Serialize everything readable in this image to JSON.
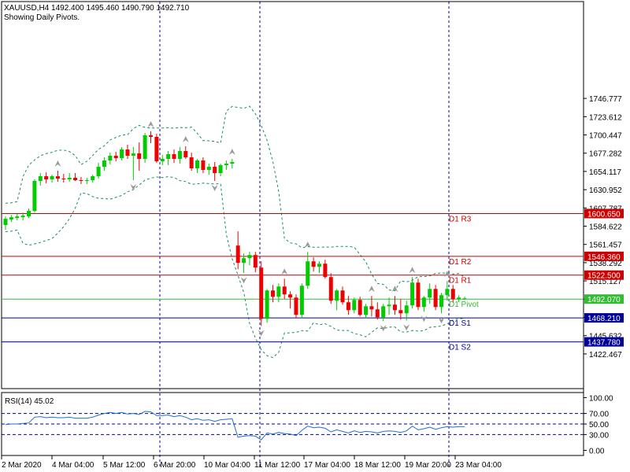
{
  "header": {
    "symbol_line": "XAUUSD,H4  1492.400 1495.460 1490.790 1492.710",
    "subtitle": "Showing Daily Pivots."
  },
  "colors": {
    "bull": "#00cc00",
    "bear": "#ee0000",
    "band": "#1a8a5a",
    "resistance": "#cc0000",
    "pivot": "#33bb33",
    "support": "#000099",
    "session": "#000099",
    "rsi": "#1e6fd0",
    "fractal": "#999999"
  },
  "chart_data": [
    {
      "type": "candlestick",
      "symbol": "XAUUSD",
      "timeframe": "H4",
      "ylim": [
        1400,
        1766
      ],
      "y_ticks": [
        "1746.777",
        "1723.612",
        "1700.447",
        "1677.282",
        "1654.117",
        "1630.952",
        "1607.787",
        "1584.622",
        "1561.457",
        "1538.292",
        "1515.127",
        "1491.962",
        "1468.797",
        "1445.632",
        "1422.467"
      ],
      "x_ticks": [
        "2 Mar 2020",
        "4 Mar 04:00",
        "5 Mar 12:00",
        "6 Mar 20:00",
        "10 Mar 04:00",
        "11 Mar 12:00",
        "17 Mar 04:00",
        "18 Mar 12:00",
        "19 Mar 20:00",
        "23 Mar 04:00"
      ],
      "candles": [
        [
          1586,
          1597,
          1580,
          1594
        ],
        [
          1593,
          1599,
          1590,
          1596
        ],
        [
          1595,
          1600,
          1592,
          1597
        ],
        [
          1596,
          1602,
          1592,
          1598
        ],
        [
          1597,
          1607,
          1595,
          1604
        ],
        [
          1604,
          1644,
          1602,
          1642
        ],
        [
          1642,
          1652,
          1636,
          1648
        ],
        [
          1648,
          1653,
          1639,
          1644
        ],
        [
          1644,
          1650,
          1640,
          1648
        ],
        [
          1648,
          1655,
          1641,
          1645
        ],
        [
          1645,
          1651,
          1640,
          1644
        ],
        [
          1644,
          1652,
          1641,
          1646
        ],
        [
          1646,
          1652,
          1642,
          1643
        ],
        [
          1643,
          1647,
          1638,
          1642
        ],
        [
          1642,
          1646,
          1638,
          1643
        ],
        [
          1643,
          1650,
          1640,
          1648
        ],
        [
          1648,
          1665,
          1645,
          1660
        ],
        [
          1660,
          1672,
          1655,
          1668
        ],
        [
          1668,
          1678,
          1663,
          1674
        ],
        [
          1674,
          1679,
          1667,
          1671
        ],
        [
          1671,
          1685,
          1668,
          1682
        ],
        [
          1682,
          1688,
          1670,
          1674
        ],
        [
          1674,
          1685,
          1643,
          1677
        ],
        [
          1677,
          1691,
          1655,
          1670
        ],
        [
          1670,
          1703,
          1665,
          1700
        ],
        [
          1700,
          1705,
          1690,
          1698
        ],
        [
          1698,
          1702,
          1665,
          1667
        ],
        [
          1667,
          1675,
          1662,
          1670
        ],
        [
          1670,
          1680,
          1662,
          1676
        ],
        [
          1676,
          1682,
          1665,
          1670
        ],
        [
          1670,
          1685,
          1664,
          1680
        ],
        [
          1680,
          1686,
          1670,
          1672
        ],
        [
          1672,
          1678,
          1655,
          1658
        ],
        [
          1658,
          1670,
          1652,
          1668
        ],
        [
          1668,
          1672,
          1652,
          1656
        ],
        [
          1656,
          1664,
          1650,
          1660
        ],
        [
          1660,
          1666,
          1642,
          1652
        ],
        [
          1652,
          1664,
          1648,
          1662
        ],
        [
          1662,
          1668,
          1656,
          1664
        ],
        [
          1664,
          1670,
          1658,
          1666
        ],
        [
          1560,
          1578,
          1530,
          1538
        ],
        [
          1538,
          1550,
          1525,
          1544
        ],
        [
          1544,
          1552,
          1535,
          1548
        ],
        [
          1548,
          1552,
          1526,
          1532
        ],
        [
          1532,
          1540,
          1458,
          1467
        ],
        [
          1467,
          1505,
          1462,
          1503
        ],
        [
          1503,
          1510,
          1488,
          1495
        ],
        [
          1495,
          1512,
          1488,
          1508
        ],
        [
          1508,
          1518,
          1492,
          1498
        ],
        [
          1498,
          1502,
          1480,
          1494
        ],
        [
          1494,
          1498,
          1468,
          1472
        ],
        [
          1472,
          1512,
          1468,
          1509
        ],
        [
          1509,
          1552,
          1505,
          1540
        ],
        [
          1540,
          1545,
          1527,
          1533
        ],
        [
          1533,
          1540,
          1525,
          1537
        ],
        [
          1537,
          1542,
          1518,
          1520
        ],
        [
          1520,
          1525,
          1486,
          1490
        ],
        [
          1490,
          1505,
          1478,
          1503
        ],
        [
          1503,
          1508,
          1485,
          1488
        ],
        [
          1488,
          1496,
          1472,
          1478
        ],
        [
          1478,
          1494,
          1474,
          1491
        ],
        [
          1491,
          1495,
          1470,
          1472
        ],
        [
          1472,
          1486,
          1468,
          1483
        ],
        [
          1483,
          1496,
          1470,
          1479
        ],
        [
          1479,
          1488,
          1466,
          1469
        ],
        [
          1469,
          1486,
          1464,
          1483
        ],
        [
          1483,
          1494,
          1472,
          1485
        ],
        [
          1485,
          1496,
          1472,
          1478
        ],
        [
          1478,
          1492,
          1466,
          1474
        ],
        [
          1474,
          1490,
          1465,
          1484
        ],
        [
          1484,
          1520,
          1480,
          1513
        ],
        [
          1513,
          1518,
          1478,
          1482
        ],
        [
          1482,
          1496,
          1476,
          1494
        ],
        [
          1494,
          1512,
          1486,
          1505
        ],
        [
          1505,
          1510,
          1478,
          1482
        ],
        [
          1482,
          1500,
          1474,
          1497
        ],
        [
          1497,
          1515,
          1490,
          1505
        ],
        [
          1505,
          1510,
          1488,
          1492
        ],
        [
          1492,
          1497,
          1488,
          1494
        ],
        [
          1492,
          1495,
          1491,
          1493
        ]
      ],
      "pivots": [
        {
          "label": "D1 R3",
          "value": "1600.650"
        },
        {
          "label": "D1 R2",
          "value": "1546.360"
        },
        {
          "label": "D1 R1",
          "value": "1522.500"
        },
        {
          "label": "D1 Pivot",
          "value": "1492.070"
        },
        {
          "label": "D1 S1",
          "value": "1468.210"
        },
        {
          "label": "D1 S2",
          "value": "1437.780"
        }
      ]
    },
    {
      "type": "line",
      "title": "RSI(14) 45.02",
      "ylim": [
        0,
        100
      ],
      "y_ticks": [
        "100.00",
        "70.00",
        "50.00",
        "30.00",
        "0.00"
      ],
      "values": [
        49,
        50,
        50,
        51,
        52,
        63,
        64,
        62,
        63,
        62,
        62,
        63,
        61,
        61,
        61,
        63,
        67,
        70,
        72,
        70,
        72,
        69,
        70,
        68,
        74,
        73,
        66,
        66,
        67,
        64,
        66,
        63,
        58,
        60,
        57,
        58,
        55,
        58,
        59,
        60,
        25,
        27,
        28,
        27,
        20,
        33,
        31,
        34,
        32,
        31,
        28,
        38,
        46,
        43,
        44,
        42,
        35,
        39,
        36,
        33,
        37,
        34,
        36,
        35,
        33,
        36,
        37,
        36,
        34,
        37,
        46,
        39,
        41,
        44,
        40,
        43,
        45,
        44,
        45,
        45
      ]
    }
  ]
}
